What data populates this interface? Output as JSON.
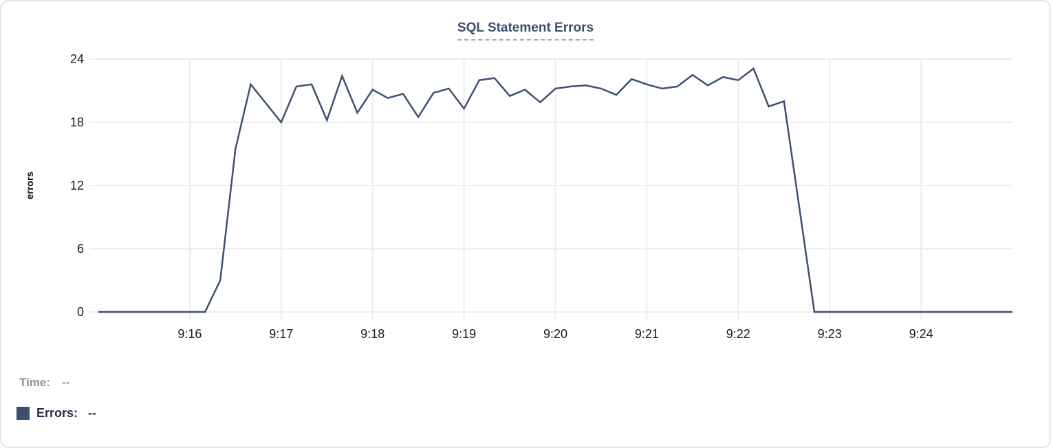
{
  "chart_data": {
    "type": "line",
    "title": "SQL Statement Errors",
    "xlabel": "",
    "ylabel": "errors",
    "ylim": [
      0,
      24
    ],
    "yticks": [
      0,
      6,
      12,
      18,
      24
    ],
    "xticks": [
      "9:16",
      "9:17",
      "9:18",
      "9:19",
      "9:20",
      "9:21",
      "9:22",
      "9:23",
      "9:24"
    ],
    "grid": true,
    "legend_position": "bottom-left",
    "title_color": "#3d4f6d",
    "grid_color": "#ececec",
    "tick_color": "#1a1a1c",
    "series": [
      {
        "name": "Errors",
        "color": "#3e5070",
        "x": [
          "9:15:00",
          "9:15:10",
          "9:15:20",
          "9:15:30",
          "9:15:40",
          "9:15:50",
          "9:16:00",
          "9:16:10",
          "9:16:20",
          "9:16:30",
          "9:16:40",
          "9:16:50",
          "9:17:00",
          "9:17:10",
          "9:17:20",
          "9:17:30",
          "9:17:40",
          "9:17:50",
          "9:18:00",
          "9:18:10",
          "9:18:20",
          "9:18:30",
          "9:18:40",
          "9:18:50",
          "9:19:00",
          "9:19:10",
          "9:19:20",
          "9:19:30",
          "9:19:40",
          "9:19:50",
          "9:20:00",
          "9:20:10",
          "9:20:20",
          "9:20:30",
          "9:20:40",
          "9:20:50",
          "9:21:00",
          "9:21:10",
          "9:21:20",
          "9:21:30",
          "9:21:40",
          "9:21:50",
          "9:22:00",
          "9:22:10",
          "9:22:20",
          "9:22:30",
          "9:22:40",
          "9:22:50",
          "9:23:00",
          "9:23:10",
          "9:23:20",
          "9:23:30",
          "9:23:40",
          "9:23:50",
          "9:24:00",
          "9:24:10",
          "9:24:20",
          "9:24:30",
          "9:24:40",
          "9:24:50",
          "9:25:00"
        ],
        "values": [
          0,
          0,
          0,
          0,
          0,
          0,
          0,
          0,
          3,
          15.5,
          21.6,
          19.8,
          18,
          21.4,
          21.6,
          18.2,
          22.4,
          18.9,
          21.1,
          20.3,
          20.7,
          18.5,
          20.8,
          21.2,
          19.3,
          22,
          22.2,
          20.5,
          21.1,
          19.9,
          21.2,
          21.4,
          21.5,
          21.2,
          20.6,
          22.1,
          21.6,
          21.2,
          21.4,
          22.5,
          21.5,
          22.3,
          22,
          23.1,
          19.5,
          20,
          10,
          0,
          0,
          0,
          0,
          0,
          0,
          0,
          0,
          0,
          0,
          0,
          0,
          0,
          0
        ]
      }
    ]
  },
  "hover_readout": {
    "time_label": "Time:",
    "time_value": "--",
    "errors_label": "Errors:",
    "errors_value": "--",
    "swatch_color": "#3e4f6e"
  }
}
